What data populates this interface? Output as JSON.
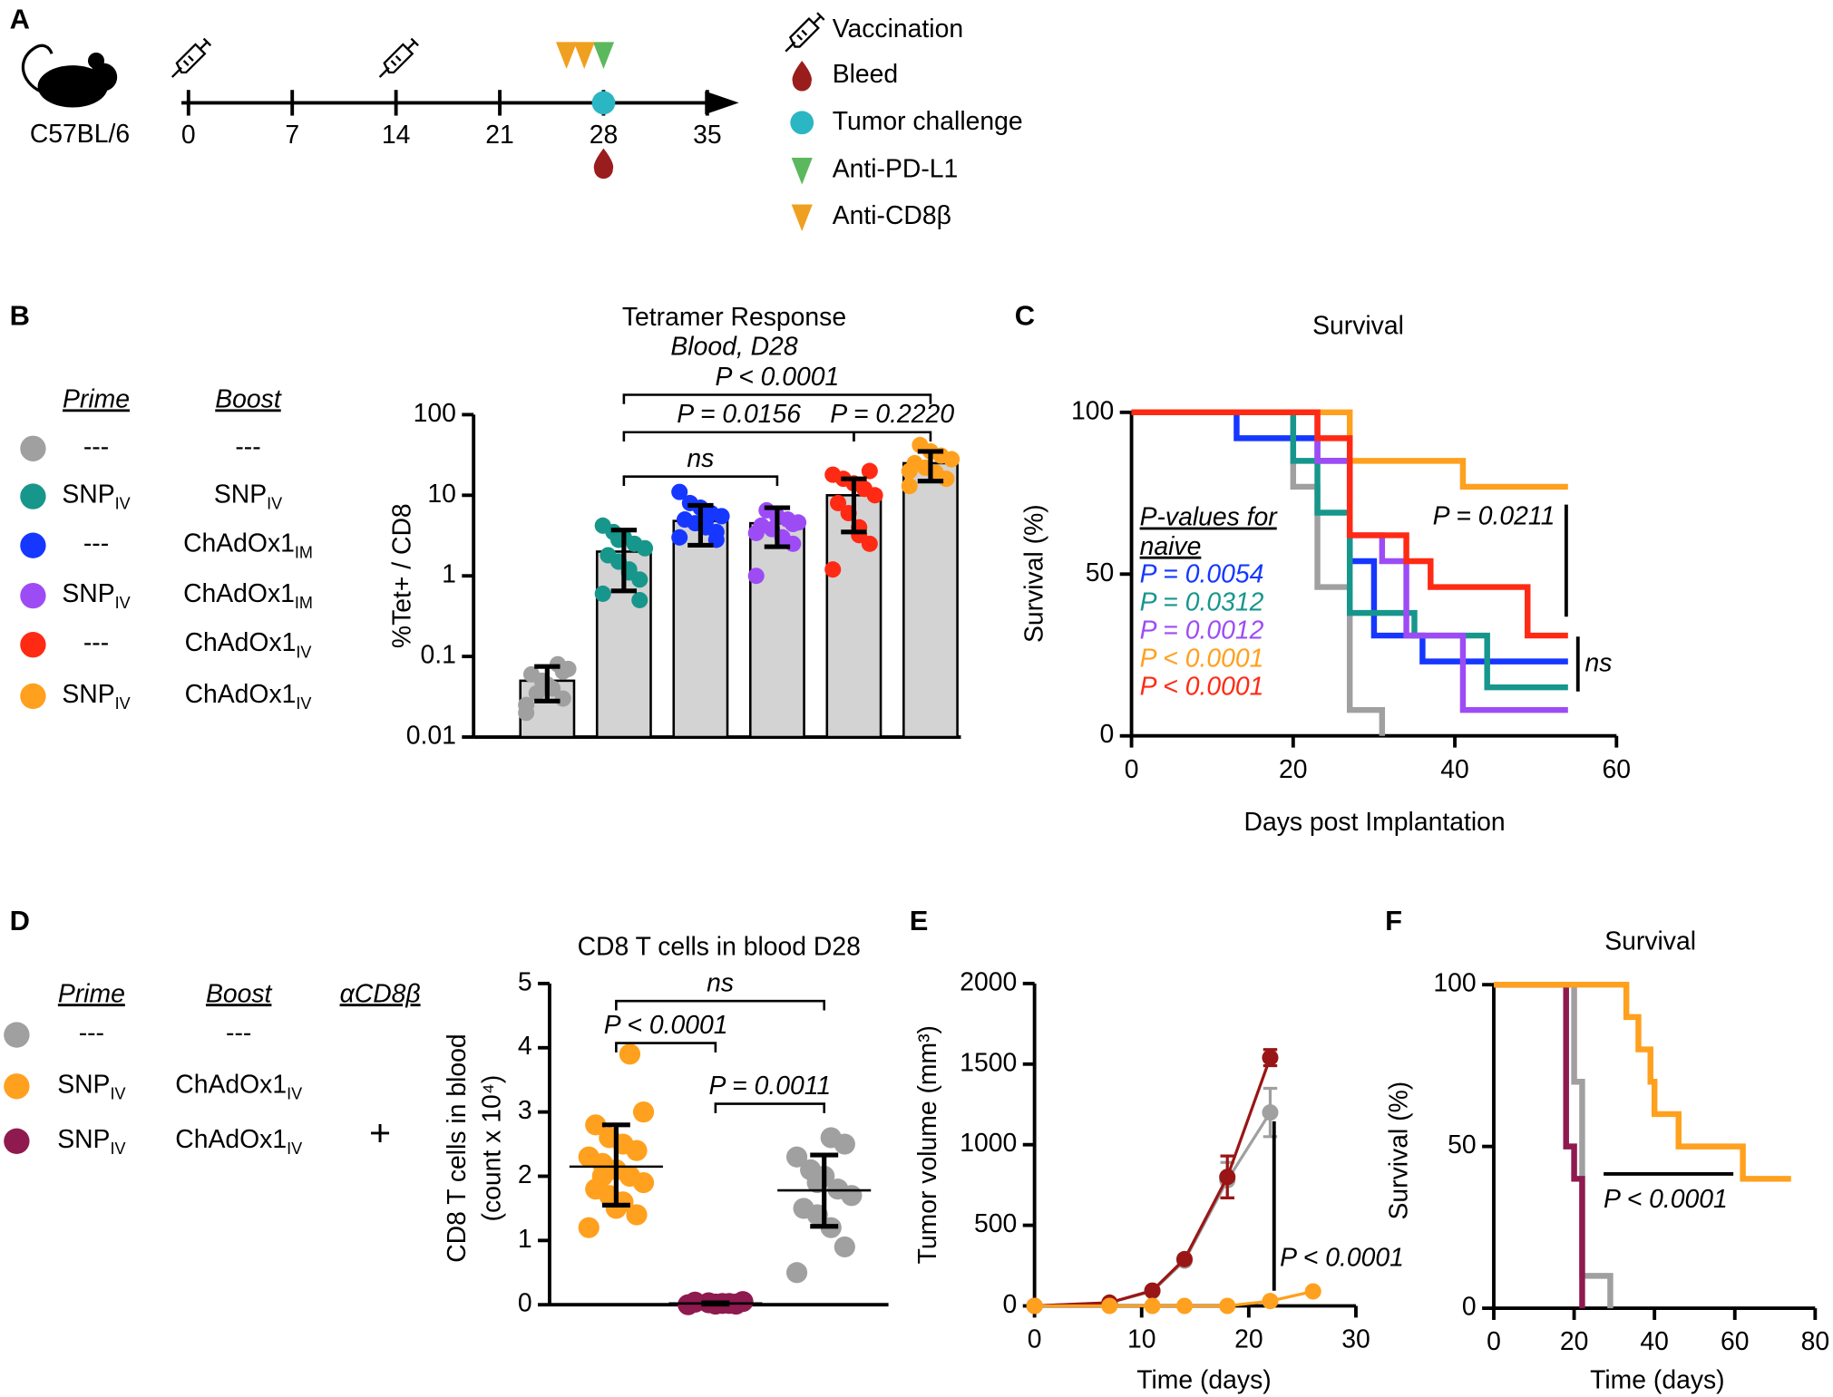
{
  "panel_labels": [
    "A",
    "B",
    "C",
    "D",
    "E",
    "F"
  ],
  "timeline": {
    "strain": "C57BL/6",
    "ticks": [
      0,
      7,
      14,
      21,
      28,
      35
    ],
    "xlim": [
      0,
      35
    ],
    "events": [
      {
        "name": "Vaccination",
        "days": [
          0,
          14
        ]
      },
      {
        "name": "Bleed",
        "days": [
          28
        ],
        "color": "#9a1d1d"
      },
      {
        "name": "Tumor challenge",
        "days": [
          28
        ],
        "color": "#2bb6c4"
      },
      {
        "name": "Anti-PD-L1",
        "days": [
          28
        ],
        "color": "#5cb85c"
      },
      {
        "name": "Anti-CD8β",
        "days": [
          25.5,
          26.7
        ],
        "color": "#f0a020"
      }
    ]
  },
  "legend_b": {
    "headers": [
      "Prime",
      "Boost"
    ],
    "rows": [
      {
        "color": "#a0a0a0",
        "prime": {
          "text": "---"
        },
        "boost": {
          "text": "---"
        }
      },
      {
        "color": "#17968c",
        "prime": {
          "text": "SNP",
          "sub": "IV"
        },
        "boost": {
          "text": "SNP",
          "sub": "IV"
        }
      },
      {
        "color": "#1537ff",
        "prime": {
          "text": "---"
        },
        "boost": {
          "text": "ChAdOx1",
          "sub": "IM"
        }
      },
      {
        "color": "#9d4cf5",
        "prime": {
          "text": "SNP",
          "sub": "IV"
        },
        "boost": {
          "text": "ChAdOx1",
          "sub": "IM"
        }
      },
      {
        "color": "#ff2a14",
        "prime": {
          "text": "---"
        },
        "boost": {
          "text": "ChAdOx1",
          "sub": "IV"
        }
      },
      {
        "color": "#ffa01e",
        "prime": {
          "text": "SNP",
          "sub": "IV"
        },
        "boost": {
          "text": "ChAdOx1",
          "sub": "IV"
        }
      }
    ]
  },
  "legend_d": {
    "headers": [
      "Prime",
      "Boost",
      "αCD8β"
    ],
    "plus": "+",
    "rows": [
      {
        "color": "#a0a0a0",
        "prime": {
          "text": "---"
        },
        "boost": {
          "text": "---"
        }
      },
      {
        "color": "#ffa01e",
        "prime": {
          "text": "SNP",
          "sub": "IV"
        },
        "boost": {
          "text": "ChAdOx1",
          "sub": "IV"
        }
      },
      {
        "color": "#8e1a4f",
        "prime": {
          "text": "SNP",
          "sub": "IV"
        },
        "boost": {
          "text": "ChAdOx1",
          "sub": "IV"
        }
      }
    ]
  },
  "chart_data": [
    {
      "type": "bar",
      "title": "Tetramer Response",
      "subtitle": "Blood, D28",
      "ylabel": "%Tet+ / CD8",
      "log_y": true,
      "ylim": [
        0.01,
        100
      ],
      "yticks": [
        0.01,
        0.1,
        1,
        10,
        100
      ],
      "categories": [
        null,
        null,
        null,
        null,
        null,
        null
      ],
      "bar_color": "#d3d3d3",
      "colors": [
        "#a0a0a0",
        "#17968c",
        "#1537ff",
        "#9d4cf5",
        "#ff2a14",
        "#ffa01e"
      ],
      "values": [
        0.05,
        2.0,
        4.8,
        4.5,
        10,
        25
      ],
      "error_low": [
        0.028,
        0.65,
        2.4,
        2.3,
        3.5,
        15
      ],
      "error_high": [
        0.075,
        3.7,
        7.5,
        7,
        16,
        35
      ],
      "points": [
        [
          0.02,
          0.03,
          0.04,
          0.05,
          0.06,
          0.07,
          0.08,
          0.045,
          0.035,
          0.025,
          0.065
        ],
        [
          0.6,
          0.9,
          1.1,
          1.5,
          1.8,
          2.2,
          2.5,
          3,
          3.5,
          4.2,
          0.5,
          1.2,
          2.8
        ],
        [
          3,
          3.5,
          4,
          4.5,
          5,
          5.5,
          6,
          7,
          8,
          11,
          2.8,
          4.8
        ],
        [
          1,
          2.5,
          3,
          3.8,
          4.2,
          4.6,
          5,
          5.5,
          6.5,
          3.4,
          4.4
        ],
        [
          1.2,
          2.5,
          4,
          6,
          8,
          10,
          12,
          14,
          16,
          18,
          20,
          3.2
        ],
        [
          13,
          16,
          19,
          22,
          25,
          28,
          31,
          35,
          42,
          20
        ]
      ],
      "comparisons": [
        {
          "groups": [
            1,
            3
          ],
          "label": "ns"
        },
        {
          "groups": [
            1,
            4
          ],
          "label": "P = 0.0156"
        },
        {
          "groups": [
            4,
            5
          ],
          "label": "P = 0.2220"
        },
        {
          "groups": [
            1,
            5
          ],
          "label": "P < 0.0001"
        }
      ]
    },
    {
      "type": "step",
      "title": "Survival",
      "xlabel": "Days post Implantation",
      "ylabel": "Survival (%)",
      "xlim": [
        0,
        60
      ],
      "xticks": [
        0,
        20,
        40,
        60
      ],
      "ylim": [
        0,
        100
      ],
      "yticks": [
        0,
        50,
        100
      ],
      "series": [
        {
          "color": "#a0a0a0",
          "x": [
            0,
            20,
            23,
            27,
            31
          ],
          "values": [
            100,
            77,
            46,
            8,
            0
          ]
        },
        {
          "color": "#1537ff",
          "x": [
            0,
            13,
            23,
            27,
            30,
            36,
            54
          ],
          "values": [
            100,
            92,
            85,
            54,
            31,
            23,
            23
          ]
        },
        {
          "color": "#17968c",
          "x": [
            0,
            20,
            23,
            27,
            35,
            44,
            54
          ],
          "values": [
            100,
            85,
            69,
            38,
            31,
            15,
            15
          ]
        },
        {
          "color": "#9d4cf5",
          "x": [
            0,
            23,
            27,
            31,
            34,
            41,
            54
          ],
          "values": [
            100,
            85,
            62,
            54,
            31,
            8,
            8
          ]
        },
        {
          "color": "#ffa01e",
          "x": [
            0,
            27,
            41,
            54
          ],
          "values": [
            100,
            85,
            77,
            77
          ]
        },
        {
          "color": "#ff2a14",
          "x": [
            0,
            23,
            27,
            34,
            37,
            49,
            54
          ],
          "values": [
            100,
            92,
            62,
            54,
            46,
            31,
            31
          ]
        }
      ],
      "pvalue_header": [
        "P-values for",
        "naive"
      ],
      "pvalues": [
        {
          "label": "P = 0.0054",
          "color": "#1537ff"
        },
        {
          "label": "P = 0.0312",
          "color": "#17968c"
        },
        {
          "label": "P = 0.0012",
          "color": "#9d4cf5"
        },
        {
          "label": "P < 0.0001",
          "color": "#ffa01e"
        },
        {
          "label": "P < 0.0001",
          "color": "#ff2a14"
        }
      ],
      "annotations": [
        "P = 0.0211",
        "ns"
      ]
    },
    {
      "type": "dot",
      "title": "CD8 T cells in blood D28",
      "ylabel": [
        "CD8 T cells in blood",
        "(count x 10⁴)"
      ],
      "ylim": [
        0,
        5
      ],
      "yticks": [
        0,
        1,
        2,
        3,
        4,
        5
      ],
      "categories": [
        null,
        null,
        null
      ],
      "colors": [
        "#ffa01e",
        "#8e1a4f",
        "#a0a0a0"
      ],
      "values": [
        2.15,
        0.02,
        1.78
      ],
      "error_low": [
        1.55,
        0.01,
        1.22
      ],
      "error_high": [
        2.8,
        0.03,
        2.33
      ],
      "points": [
        [
          1.2,
          1.4,
          1.6,
          1.7,
          1.8,
          1.9,
          2.0,
          2.1,
          2.2,
          2.3,
          2.4,
          2.5,
          2.6,
          2.8,
          3.0,
          3.9,
          1.5,
          2.0
        ],
        [
          0,
          0.01,
          0.02,
          0.03,
          0.04,
          0.05,
          0.02,
          0.01
        ],
        [
          0.5,
          0.9,
          1.2,
          1.4,
          1.5,
          1.7,
          1.8,
          2.0,
          2.1,
          2.3,
          2.5,
          2.6,
          1.9
        ]
      ],
      "comparisons": [
        {
          "groups": [
            0,
            1
          ],
          "label": "P < 0.0001"
        },
        {
          "groups": [
            1,
            2
          ],
          "label": "P = 0.0011"
        },
        {
          "groups": [
            0,
            2
          ],
          "label": "ns"
        }
      ]
    },
    {
      "type": "line",
      "xlabel": "Time (days)",
      "ylabel": "Tumor volume (mm³)",
      "xlim": [
        0,
        30
      ],
      "xticks": [
        0,
        10,
        20,
        30
      ],
      "ylim": [
        0,
        2000
      ],
      "yticks": [
        0,
        500,
        1000,
        1500,
        2000
      ],
      "series": [
        {
          "color": "#a0a0a0",
          "x": [
            0,
            7,
            11,
            14,
            18,
            22
          ],
          "values": [
            0,
            20,
            90,
            280,
            780,
            1200
          ],
          "errors": [
            null,
            null,
            null,
            null,
            110,
            150
          ]
        },
        {
          "color": "#9a1515",
          "x": [
            0,
            7,
            11,
            14,
            18,
            22
          ],
          "values": [
            0,
            20,
            95,
            290,
            800,
            1540
          ],
          "errors": [
            null,
            null,
            null,
            null,
            130,
            50
          ]
        },
        {
          "color": "#ffa01e",
          "x": [
            0,
            7,
            11,
            14,
            18,
            22,
            26
          ],
          "values": [
            0,
            0,
            0,
            0,
            0,
            30,
            90
          ],
          "errors": [
            null,
            null,
            null,
            null,
            null,
            null,
            null
          ]
        }
      ],
      "annotations": [
        "P < 0.0001"
      ]
    },
    {
      "type": "step",
      "title": "Survival",
      "xlabel": "Time (days)",
      "ylabel": "Survival (%)",
      "xlim": [
        0,
        80
      ],
      "xticks": [
        0,
        20,
        40,
        60,
        80
      ],
      "ylim": [
        0,
        100
      ],
      "yticks": [
        0,
        50,
        100
      ],
      "series": [
        {
          "color": "#a0a0a0",
          "x": [
            0,
            20,
            22,
            29
          ],
          "values": [
            100,
            70,
            10,
            0
          ]
        },
        {
          "color": "#8e1a4f",
          "x": [
            0,
            18,
            20,
            22
          ],
          "values": [
            100,
            50,
            40,
            0
          ]
        },
        {
          "color": "#ffa01e",
          "x": [
            0,
            33,
            36,
            39,
            40,
            46,
            62,
            74
          ],
          "values": [
            100,
            90,
            80,
            70,
            60,
            50,
            40,
            40
          ]
        }
      ],
      "annotations": [
        "P < 0.0001"
      ]
    }
  ]
}
